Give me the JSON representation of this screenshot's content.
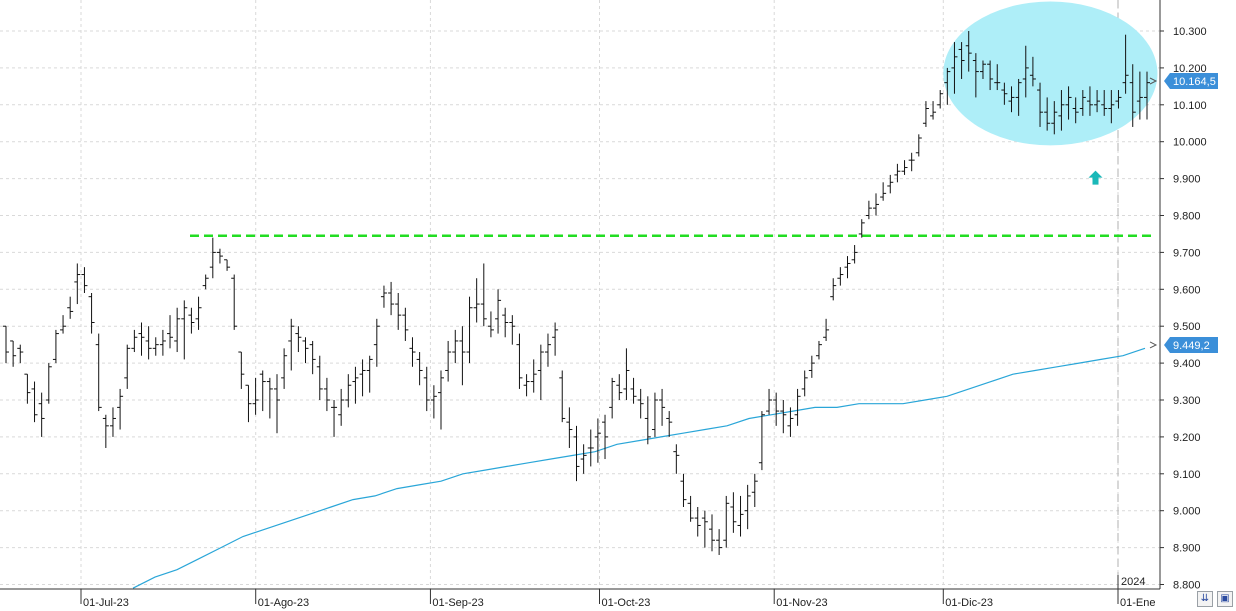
{
  "chart_data": {
    "type": "ohlc",
    "title": "",
    "xlabel": "",
    "ylabel": "",
    "ylim": [
      8.8,
      10.35
    ],
    "grid": true,
    "price_ticks": [
      "10.300",
      "10.200",
      "10.100",
      "10.000",
      "9.900",
      "9.800",
      "9.700",
      "9.600",
      "9.500",
      "9.400",
      "9.300",
      "9.200",
      "9.100",
      "9.000",
      "8.900",
      "8.800"
    ],
    "price_tick_values": [
      10.3,
      10.2,
      10.1,
      10.0,
      9.9,
      9.8,
      9.7,
      9.6,
      9.5,
      9.4,
      9.3,
      9.2,
      9.1,
      9.0,
      8.9,
      8.8
    ],
    "date_labels": [
      {
        "label": "01-Jul-23",
        "date": "2023-07-01"
      },
      {
        "label": "01-Ago-23",
        "date": "2023-08-01"
      },
      {
        "label": "01-Sep-23",
        "date": "2023-09-01"
      },
      {
        "label": "01-Oct-23",
        "date": "2023-10-01"
      },
      {
        "label": "01-Nov-23",
        "date": "2023-11-01"
      },
      {
        "label": "01-Dic-23",
        "date": "2023-12-01"
      },
      {
        "label": "01-Ene",
        "date": "2024-01-01"
      }
    ],
    "year_marker": {
      "label": "2024",
      "date": "2024-01-01"
    },
    "start_date": "2023-06-22",
    "end_date": "2024-01-08",
    "series": [
      {
        "type": "ohlc",
        "values": [
          [
            9.5,
            9.5,
            9.4,
            9.43
          ],
          [
            9.46,
            9.46,
            9.39,
            9.42
          ],
          [
            9.44,
            9.45,
            9.4,
            9.43
          ],
          [
            9.37,
            9.37,
            9.29,
            9.32
          ],
          [
            9.33,
            9.35,
            9.24,
            9.26
          ],
          [
            9.29,
            9.32,
            9.2,
            9.25
          ],
          [
            9.3,
            9.4,
            9.29,
            9.39
          ],
          [
            9.41,
            9.49,
            9.4,
            9.48
          ],
          [
            9.49,
            9.53,
            9.48,
            9.5
          ],
          [
            9.55,
            9.58,
            9.52,
            9.54
          ],
          [
            9.62,
            9.67,
            9.56,
            9.64
          ],
          [
            9.64,
            9.66,
            9.59,
            9.61
          ],
          [
            9.58,
            9.59,
            9.48,
            9.51
          ],
          [
            9.45,
            9.48,
            9.27,
            9.28
          ],
          [
            9.25,
            9.26,
            9.17,
            9.23
          ],
          [
            9.23,
            9.28,
            9.2,
            9.25
          ],
          [
            9.28,
            9.33,
            9.22,
            9.31
          ],
          [
            9.36,
            9.45,
            9.33,
            9.44
          ],
          [
            9.44,
            9.49,
            9.43,
            9.47
          ],
          [
            9.48,
            9.51,
            9.42,
            9.47
          ],
          [
            9.46,
            9.5,
            9.41,
            9.44
          ],
          [
            9.44,
            9.47,
            9.42,
            9.45
          ],
          [
            9.45,
            9.49,
            9.42,
            9.46
          ],
          [
            9.48,
            9.53,
            9.44,
            9.47
          ],
          [
            9.46,
            9.55,
            9.43,
            9.52
          ],
          [
            9.52,
            9.57,
            9.41,
            9.55
          ],
          [
            9.53,
            9.55,
            9.48,
            9.51
          ],
          [
            9.52,
            9.58,
            9.49,
            9.55
          ],
          [
            9.61,
            9.64,
            9.6,
            9.63
          ],
          [
            9.66,
            9.74,
            9.63,
            9.7
          ],
          [
            9.7,
            9.71,
            9.67,
            9.69
          ],
          [
            9.68,
            9.68,
            9.65,
            9.66
          ],
          [
            9.63,
            9.64,
            9.49,
            9.5
          ],
          [
            9.43,
            9.43,
            9.33,
            9.37
          ],
          [
            9.34,
            9.34,
            9.24,
            9.29
          ],
          [
            9.29,
            9.36,
            9.26,
            9.3
          ],
          [
            9.37,
            9.38,
            9.27,
            9.35
          ],
          [
            9.35,
            9.36,
            9.25,
            9.33
          ],
          [
            9.33,
            9.37,
            9.21,
            9.3
          ],
          [
            9.36,
            9.44,
            9.33,
            9.42
          ],
          [
            9.46,
            9.52,
            9.38,
            9.5
          ],
          [
            9.48,
            9.5,
            9.43,
            9.47
          ],
          [
            9.46,
            9.47,
            9.4,
            9.44
          ],
          [
            9.45,
            9.46,
            9.37,
            9.41
          ],
          [
            9.39,
            9.42,
            9.3,
            9.33
          ],
          [
            9.33,
            9.36,
            9.27,
            9.3
          ],
          [
            9.28,
            9.3,
            9.2,
            9.28
          ],
          [
            9.26,
            9.33,
            9.23,
            9.3
          ],
          [
            9.3,
            9.37,
            9.28,
            9.34
          ],
          [
            9.35,
            9.39,
            9.29,
            9.36
          ],
          [
            9.37,
            9.41,
            9.31,
            9.38
          ],
          [
            9.38,
            9.42,
            9.32,
            9.41
          ],
          [
            9.45,
            9.52,
            9.39,
            9.5
          ],
          [
            9.58,
            9.61,
            9.55,
            9.59
          ],
          [
            9.59,
            9.62,
            9.53,
            9.56
          ],
          [
            9.56,
            9.59,
            9.49,
            9.53
          ],
          [
            9.53,
            9.55,
            9.46,
            9.49
          ],
          [
            9.44,
            9.47,
            9.39,
            9.43
          ],
          [
            9.41,
            9.43,
            9.34,
            9.38
          ],
          [
            9.36,
            9.39,
            9.27,
            9.3
          ],
          [
            9.3,
            9.34,
            9.25,
            9.31
          ],
          [
            9.32,
            9.38,
            9.22,
            9.36
          ],
          [
            9.38,
            9.46,
            9.35,
            9.43
          ],
          [
            9.43,
            9.49,
            9.4,
            9.46
          ],
          [
            9.46,
            9.5,
            9.34,
            9.43
          ],
          [
            9.43,
            9.58,
            9.4,
            9.55
          ],
          [
            9.55,
            9.63,
            9.51,
            9.56
          ],
          [
            9.56,
            9.67,
            9.5,
            9.52
          ],
          [
            9.5,
            9.54,
            9.47,
            9.49
          ],
          [
            9.52,
            9.6,
            9.48,
            9.57
          ],
          [
            9.53,
            9.55,
            9.47,
            9.51
          ],
          [
            9.51,
            9.53,
            9.45,
            9.5
          ],
          [
            9.45,
            9.48,
            9.33,
            9.36
          ],
          [
            9.34,
            9.37,
            9.31,
            9.35
          ],
          [
            9.35,
            9.41,
            9.32,
            9.37
          ],
          [
            9.38,
            9.45,
            9.3,
            9.43
          ],
          [
            9.43,
            9.48,
            9.39,
            9.45
          ],
          [
            9.47,
            9.51,
            9.42,
            9.49
          ],
          [
            9.36,
            9.38,
            9.24,
            9.25
          ],
          [
            9.24,
            9.28,
            9.17,
            9.22
          ],
          [
            9.2,
            9.23,
            9.08,
            9.12
          ],
          [
            9.14,
            9.18,
            9.1,
            9.15
          ],
          [
            9.17,
            9.22,
            9.12,
            9.17
          ],
          [
            9.2,
            9.25,
            9.13,
            9.21
          ],
          [
            9.24,
            9.26,
            9.14,
            9.2
          ],
          [
            9.28,
            9.36,
            9.25,
            9.35
          ],
          [
            9.34,
            9.37,
            9.3,
            9.32
          ],
          [
            9.33,
            9.44,
            9.3,
            9.38
          ],
          [
            9.33,
            9.36,
            9.29,
            9.31
          ],
          [
            9.3,
            9.33,
            9.25,
            9.29
          ],
          [
            9.25,
            9.31,
            9.18,
            9.2
          ],
          [
            9.22,
            9.32,
            9.2,
            9.3
          ],
          [
            9.3,
            9.33,
            9.23,
            9.28
          ],
          [
            9.25,
            9.27,
            9.2,
            9.24
          ],
          [
            9.16,
            9.18,
            9.1,
            9.15
          ],
          [
            9.08,
            9.1,
            9.01,
            9.03
          ],
          [
            9.02,
            9.04,
            8.97,
            8.98
          ],
          [
            8.98,
            9.01,
            8.93,
            8.96
          ],
          [
            8.98,
            9.0,
            8.9,
            8.97
          ],
          [
            8.95,
            8.99,
            8.89,
            8.92
          ],
          [
            8.92,
            8.95,
            8.88,
            8.9
          ],
          [
            8.92,
            9.04,
            8.9,
            9.02
          ],
          [
            9.01,
            9.05,
            8.94,
            8.97
          ],
          [
            8.96,
            9.04,
            8.93,
            8.99
          ],
          [
            9.0,
            9.07,
            8.95,
            9.04
          ],
          [
            9.05,
            9.1,
            9.01,
            9.08
          ],
          [
            9.13,
            9.27,
            9.11,
            9.26
          ],
          [
            9.27,
            9.33,
            9.26,
            9.3
          ],
          [
            9.3,
            9.32,
            9.23,
            9.27
          ],
          [
            9.27,
            9.3,
            9.21,
            9.26
          ],
          [
            9.23,
            9.28,
            9.2,
            9.25
          ],
          [
            9.26,
            9.33,
            9.23,
            9.31
          ],
          [
            9.33,
            9.38,
            9.31,
            9.36
          ],
          [
            9.38,
            9.42,
            9.36,
            9.4
          ],
          [
            9.42,
            9.46,
            9.41,
            9.45
          ],
          [
            9.47,
            9.52,
            9.46,
            9.49
          ],
          [
            9.58,
            9.63,
            9.57,
            9.61
          ],
          [
            9.63,
            9.66,
            9.61,
            9.64
          ],
          [
            9.66,
            9.69,
            9.63,
            9.67
          ],
          [
            9.68,
            9.72,
            9.67,
            9.7
          ],
          [
            9.75,
            9.79,
            9.74,
            9.78
          ],
          [
            9.8,
            9.84,
            9.79,
            9.82
          ],
          [
            9.82,
            9.86,
            9.8,
            9.83
          ],
          [
            9.85,
            9.89,
            9.84,
            9.86
          ],
          [
            9.88,
            9.91,
            9.86,
            9.89
          ],
          [
            9.91,
            9.94,
            9.89,
            9.92
          ],
          [
            9.92,
            9.95,
            9.91,
            9.93
          ],
          [
            9.95,
            9.97,
            9.92,
            9.95
          ],
          [
            9.97,
            10.02,
            9.96,
            10.01
          ],
          [
            10.05,
            10.11,
            10.04,
            10.09
          ],
          [
            10.07,
            10.11,
            10.06,
            10.08
          ],
          [
            10.1,
            10.14,
            10.09,
            10.13
          ],
          [
            10.16,
            10.2,
            10.1,
            10.19
          ],
          [
            10.2,
            10.27,
            10.13,
            10.23
          ],
          [
            10.25,
            10.27,
            10.17,
            10.22
          ],
          [
            10.26,
            10.3,
            10.19,
            10.24
          ],
          [
            10.22,
            10.24,
            10.12,
            10.19
          ],
          [
            10.19,
            10.22,
            10.17,
            10.21
          ],
          [
            10.21,
            10.22,
            10.14,
            10.17
          ],
          [
            10.16,
            10.21,
            10.14,
            10.16
          ],
          [
            10.14,
            10.16,
            10.1,
            10.13
          ],
          [
            10.11,
            10.15,
            10.08,
            10.12
          ],
          [
            10.12,
            10.17,
            10.07,
            10.16
          ],
          [
            10.17,
            10.26,
            10.12,
            10.2
          ],
          [
            10.18,
            10.23,
            10.15,
            10.17
          ],
          [
            10.14,
            10.16,
            10.04,
            10.08
          ],
          [
            10.08,
            10.12,
            10.03,
            10.05
          ],
          [
            10.05,
            10.11,
            10.02,
            10.08
          ],
          [
            10.07,
            10.14,
            10.03,
            10.1
          ],
          [
            10.1,
            10.15,
            10.06,
            10.12
          ],
          [
            10.09,
            10.12,
            10.05,
            10.08
          ],
          [
            10.09,
            10.14,
            10.07,
            10.12
          ],
          [
            10.11,
            10.15,
            10.07,
            10.1
          ],
          [
            10.1,
            10.14,
            10.08,
            10.11
          ],
          [
            10.1,
            10.14,
            10.07,
            10.09
          ],
          [
            10.09,
            10.14,
            10.05,
            10.1
          ],
          [
            10.11,
            10.14,
            10.09,
            10.12
          ],
          [
            10.16,
            10.29,
            10.13,
            10.18
          ],
          [
            10.16,
            10.21,
            10.04,
            10.08
          ],
          [
            10.11,
            10.19,
            10.06,
            10.12
          ],
          [
            10.12,
            10.19,
            10.06,
            10.16
          ]
        ]
      },
      {
        "type": "line",
        "name": "",
        "color": "#2aa6d8",
        "values": [
          8.79,
          8.82,
          8.84,
          8.87,
          8.9,
          8.93,
          8.95,
          8.97,
          8.99,
          9.01,
          9.03,
          9.04,
          9.06,
          9.07,
          9.08,
          9.1,
          9.11,
          9.12,
          9.13,
          9.14,
          9.15,
          9.16,
          9.18,
          9.19,
          9.2,
          9.21,
          9.22,
          9.23,
          9.25,
          9.26,
          9.27,
          9.28,
          9.28,
          9.29,
          9.29,
          9.29,
          9.3,
          9.31,
          9.33,
          9.35,
          9.37,
          9.38,
          9.39,
          9.4,
          9.41,
          9.42,
          9.44
        ]
      }
    ],
    "horizontal_line": {
      "value": 9.745,
      "color": "#22dd22",
      "style": "dashed"
    },
    "price_tags": [
      {
        "label": "10.164,5",
        "value": 10.1645
      },
      {
        "label": "9.449,2",
        "value": 9.4492
      }
    ],
    "highlight_ellipse": {
      "color": "#aeeef8",
      "start_date": "2023-12-01",
      "end_date": "2024-01-08",
      "low": 9.99,
      "high": 10.38
    },
    "arrow": {
      "direction": "up",
      "color": "#1ab8b8",
      "date": "2023-12-28",
      "value": 9.9
    }
  },
  "colors": {
    "bars": "#111111",
    "grid": "#d9d9d9",
    "axis": "#333333",
    "price_tag_bg": "#3b8fd9"
  },
  "scroll_buttons": {
    "left_icon": "double-down-arrow-icon",
    "right_icon": "save-icon"
  }
}
